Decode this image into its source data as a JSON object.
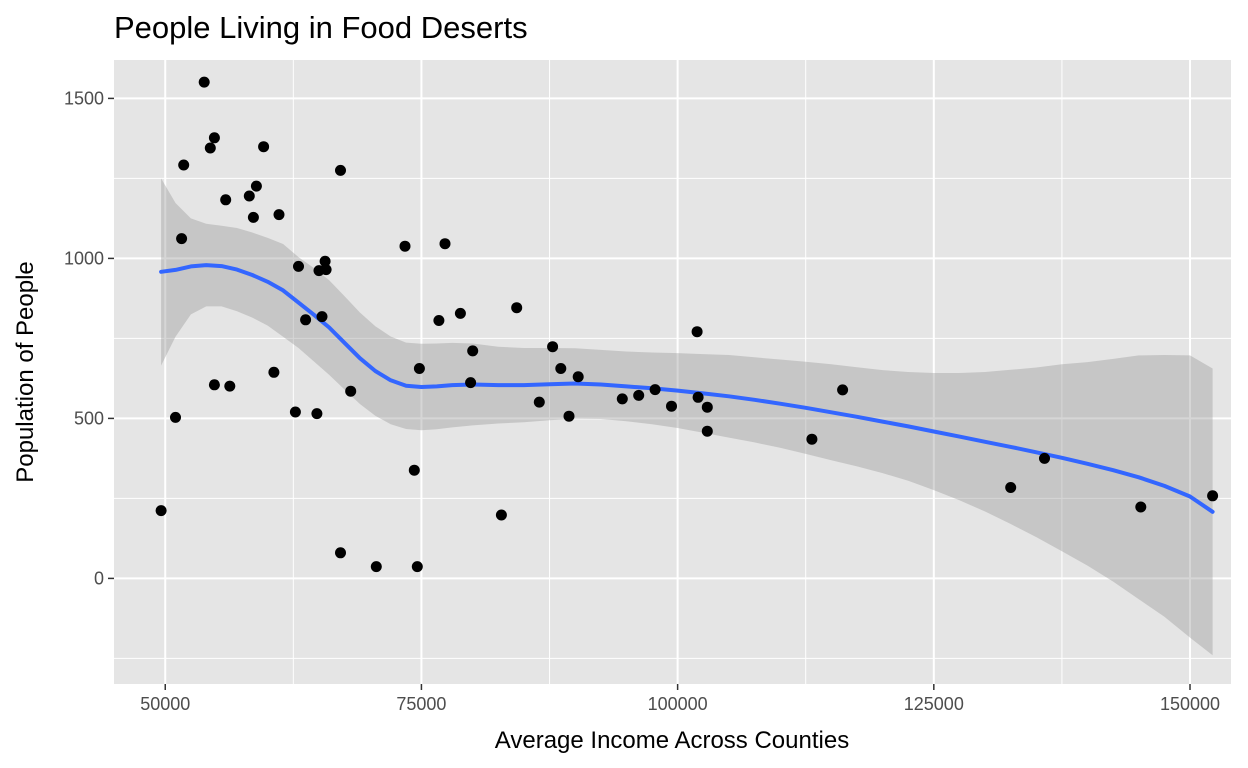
{
  "chart_data": {
    "type": "scatter",
    "title": "People Living in Food Deserts",
    "xlabel": "Average Income Across Counties",
    "ylabel": "Population of People",
    "xlim": [
      45000,
      154000
    ],
    "ylim": [
      -330,
      1620
    ],
    "x_ticks": [
      50000,
      75000,
      100000,
      125000,
      150000
    ],
    "x_tick_labels": [
      "50000",
      "75000",
      "100000",
      "125000",
      "150000"
    ],
    "y_ticks": [
      0,
      500,
      1000,
      1500
    ],
    "y_tick_labels": [
      "0",
      "500",
      "1000",
      "1500"
    ],
    "grid": true,
    "legend": "none",
    "colors": {
      "panel": "#e5e5e5",
      "grid": "#ffffff",
      "point": "#000000",
      "smooth_line": "#3366ff",
      "confidence_band": "#999999"
    },
    "points": [
      {
        "x": 49600,
        "y": 212
      },
      {
        "x": 51000,
        "y": 503
      },
      {
        "x": 51600,
        "y": 1062
      },
      {
        "x": 51800,
        "y": 1292
      },
      {
        "x": 53800,
        "y": 1551
      },
      {
        "x": 54400,
        "y": 1345
      },
      {
        "x": 54800,
        "y": 1377
      },
      {
        "x": 54800,
        "y": 605
      },
      {
        "x": 55900,
        "y": 1183
      },
      {
        "x": 56300,
        "y": 601
      },
      {
        "x": 58200,
        "y": 1195
      },
      {
        "x": 58600,
        "y": 1128
      },
      {
        "x": 58900,
        "y": 1226
      },
      {
        "x": 59600,
        "y": 1349
      },
      {
        "x": 60600,
        "y": 644
      },
      {
        "x": 61100,
        "y": 1137
      },
      {
        "x": 62700,
        "y": 520
      },
      {
        "x": 63000,
        "y": 975
      },
      {
        "x": 63700,
        "y": 808
      },
      {
        "x": 64800,
        "y": 515
      },
      {
        "x": 65000,
        "y": 962
      },
      {
        "x": 65300,
        "y": 818
      },
      {
        "x": 65600,
        "y": 991
      },
      {
        "x": 65700,
        "y": 965
      },
      {
        "x": 67100,
        "y": 1275
      },
      {
        "x": 67100,
        "y": 80
      },
      {
        "x": 68100,
        "y": 585
      },
      {
        "x": 70600,
        "y": 37
      },
      {
        "x": 73400,
        "y": 1038
      },
      {
        "x": 74300,
        "y": 338
      },
      {
        "x": 74600,
        "y": 37
      },
      {
        "x": 74800,
        "y": 656
      },
      {
        "x": 76700,
        "y": 806
      },
      {
        "x": 77300,
        "y": 1046
      },
      {
        "x": 78800,
        "y": 828
      },
      {
        "x": 79800,
        "y": 612
      },
      {
        "x": 80000,
        "y": 711
      },
      {
        "x": 82800,
        "y": 198
      },
      {
        "x": 84300,
        "y": 846
      },
      {
        "x": 86500,
        "y": 551
      },
      {
        "x": 87800,
        "y": 724
      },
      {
        "x": 88600,
        "y": 656
      },
      {
        "x": 89400,
        "y": 507
      },
      {
        "x": 90300,
        "y": 630
      },
      {
        "x": 94600,
        "y": 561
      },
      {
        "x": 96200,
        "y": 572
      },
      {
        "x": 97800,
        "y": 590
      },
      {
        "x": 99400,
        "y": 538
      },
      {
        "x": 101900,
        "y": 771
      },
      {
        "x": 102000,
        "y": 566
      },
      {
        "x": 102900,
        "y": 535
      },
      {
        "x": 102900,
        "y": 460
      },
      {
        "x": 113100,
        "y": 435
      },
      {
        "x": 116100,
        "y": 589
      },
      {
        "x": 132500,
        "y": 284
      },
      {
        "x": 135800,
        "y": 375
      },
      {
        "x": 145200,
        "y": 223
      },
      {
        "x": 152200,
        "y": 258
      }
    ],
    "smooth": {
      "x": [
        49600,
        51000,
        52500,
        54000,
        55500,
        57000,
        58500,
        60000,
        61500,
        63000,
        64500,
        66000,
        67500,
        69000,
        70500,
        72000,
        73500,
        75000,
        76500,
        78000,
        80000,
        82500,
        85000,
        87500,
        90000,
        92500,
        95000,
        97500,
        100000,
        102500,
        105000,
        107500,
        110000,
        112500,
        115000,
        117500,
        120000,
        122500,
        125000,
        127500,
        130000,
        132500,
        135000,
        137500,
        140000,
        142500,
        145000,
        147500,
        150000,
        152200
      ],
      "y": [
        958,
        964,
        975,
        979,
        976,
        965,
        948,
        927,
        900,
        862,
        824,
        784,
        736,
        688,
        648,
        619,
        602,
        598,
        600,
        604,
        606,
        604,
        604,
        607,
        609,
        606,
        600,
        594,
        587,
        578,
        569,
        558,
        546,
        533,
        519,
        505,
        490,
        475,
        459,
        443,
        427,
        411,
        394,
        377,
        358,
        338,
        316,
        289,
        256,
        208
      ],
      "lower": [
        665,
        755,
        825,
        850,
        850,
        835,
        815,
        790,
        755,
        720,
        678,
        636,
        590,
        545,
        508,
        482,
        467,
        463,
        466,
        472,
        478,
        484,
        488,
        494,
        499,
        498,
        491,
        482,
        470,
        455,
        440,
        425,
        408,
        389,
        369,
        350,
        329,
        305,
        276,
        244,
        209,
        170,
        129,
        85,
        40,
        -10,
        -65,
        -120,
        -185,
        -240
      ],
      "upper": [
        1250,
        1173,
        1125,
        1108,
        1102,
        1095,
        1081,
        1064,
        1045,
        1004,
        970,
        932,
        882,
        831,
        788,
        756,
        737,
        733,
        734,
        736,
        734,
        724,
        720,
        720,
        719,
        714,
        709,
        706,
        704,
        701,
        698,
        691,
        684,
        677,
        669,
        660,
        651,
        645,
        642,
        642,
        645,
        652,
        659,
        669,
        676,
        686,
        697,
        698,
        697,
        656
      ]
    }
  }
}
